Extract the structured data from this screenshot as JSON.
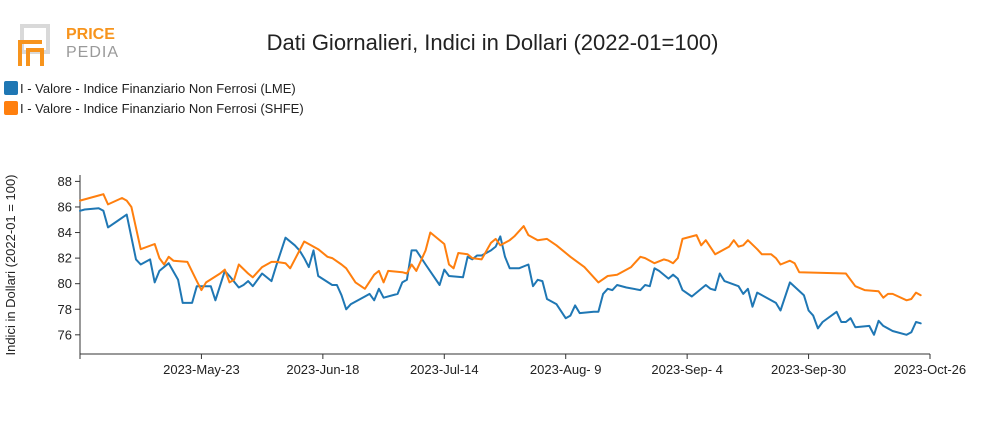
{
  "logo": {
    "line1": "PRICE",
    "line2": "PEDIA",
    "color_primary": "#f7941d",
    "color_secondary": "#9a9a9a"
  },
  "colors": {
    "lme": "#1f77b4",
    "shfe": "#ff7f0e",
    "axis": "#333333"
  },
  "chart_data": {
    "type": "line",
    "title": "Dati Giornalieri, Indici in Dollari (2022-01=100)",
    "ylabel": "Indici in Dollari (2022-01 = 100)",
    "xlabel": "",
    "xlim": [
      "2023-04-27",
      "2023-10-26"
    ],
    "ylim": [
      74.5,
      88.5
    ],
    "y_ticks": [
      76,
      78,
      80,
      82,
      84,
      86,
      88
    ],
    "x_ticks": [
      "2023-05-23",
      "2023-06-18",
      "2023-07-14",
      "2023-08-09",
      "2023-09-04",
      "2023-09-30",
      "2023-10-26"
    ],
    "x_tick_labels": [
      "2023-May-23",
      "2023-Jun-18",
      "2023-Jul-14",
      "2023-Aug- 9",
      "2023-Sep- 4",
      "2023-Sep-30",
      "2023-Oct-26"
    ],
    "legend_position": "top-left",
    "grid": false,
    "series": [
      {
        "name": "I - Valore - Indice Finanziario Non Ferrosi (LME)",
        "color": "#1f77b4",
        "points": [
          [
            "2023-04-27",
            85.7
          ],
          [
            "2023-04-28",
            85.8
          ],
          [
            "2023-05-01",
            85.9
          ],
          [
            "2023-05-02",
            85.7
          ],
          [
            "2023-05-03",
            84.4
          ],
          [
            "2023-05-05",
            84.9
          ],
          [
            "2023-05-07",
            85.4
          ],
          [
            "2023-05-09",
            81.9
          ],
          [
            "2023-05-10",
            81.5
          ],
          [
            "2023-05-12",
            81.9
          ],
          [
            "2023-05-13",
            80.1
          ],
          [
            "2023-05-14",
            81.0
          ],
          [
            "2023-05-16",
            81.6
          ],
          [
            "2023-05-18",
            80.3
          ],
          [
            "2023-05-19",
            78.5
          ],
          [
            "2023-05-21",
            78.5
          ],
          [
            "2023-05-22",
            79.8
          ],
          [
            "2023-05-25",
            79.8
          ],
          [
            "2023-05-26",
            78.7
          ],
          [
            "2023-05-28",
            81.0
          ],
          [
            "2023-05-29",
            80.6
          ],
          [
            "2023-05-31",
            79.7
          ],
          [
            "2023-06-01",
            79.9
          ],
          [
            "2023-06-02",
            80.2
          ],
          [
            "2023-06-03",
            79.8
          ],
          [
            "2023-06-05",
            80.8
          ],
          [
            "2023-06-07",
            80.2
          ],
          [
            "2023-06-08",
            81.4
          ],
          [
            "2023-06-10",
            83.6
          ],
          [
            "2023-06-12",
            83.0
          ],
          [
            "2023-06-13",
            82.6
          ],
          [
            "2023-06-14",
            82.0
          ],
          [
            "2023-06-15",
            81.3
          ],
          [
            "2023-06-16",
            82.6
          ],
          [
            "2023-06-17",
            80.6
          ],
          [
            "2023-06-20",
            79.9
          ],
          [
            "2023-06-21",
            79.9
          ],
          [
            "2023-06-22",
            79.1
          ],
          [
            "2023-06-23",
            78.0
          ],
          [
            "2023-06-24",
            78.4
          ],
          [
            "2023-06-27",
            79.0
          ],
          [
            "2023-06-28",
            79.2
          ],
          [
            "2023-06-29",
            78.7
          ],
          [
            "2023-06-30",
            79.6
          ],
          [
            "2023-07-01",
            78.9
          ],
          [
            "2023-07-04",
            79.2
          ],
          [
            "2023-07-05",
            80.1
          ],
          [
            "2023-07-06",
            80.3
          ],
          [
            "2023-07-07",
            82.6
          ],
          [
            "2023-07-08",
            82.6
          ],
          [
            "2023-07-10",
            81.5
          ],
          [
            "2023-07-13",
            79.9
          ],
          [
            "2023-07-14",
            81.1
          ],
          [
            "2023-07-15",
            80.6
          ],
          [
            "2023-07-18",
            80.5
          ],
          [
            "2023-07-19",
            82.1
          ],
          [
            "2023-07-20",
            81.9
          ],
          [
            "2023-07-21",
            82.2
          ],
          [
            "2023-07-22",
            82.2
          ],
          [
            "2023-07-24",
            82.6
          ],
          [
            "2023-07-25",
            82.9
          ],
          [
            "2023-07-26",
            83.7
          ],
          [
            "2023-07-27",
            82.1
          ],
          [
            "2023-07-28",
            81.2
          ],
          [
            "2023-07-30",
            81.2
          ],
          [
            "2023-08-01",
            81.5
          ],
          [
            "2023-08-02",
            79.8
          ],
          [
            "2023-08-03",
            80.3
          ],
          [
            "2023-08-04",
            80.2
          ],
          [
            "2023-08-05",
            78.8
          ],
          [
            "2023-08-07",
            78.4
          ],
          [
            "2023-08-09",
            77.3
          ],
          [
            "2023-08-10",
            77.5
          ],
          [
            "2023-08-11",
            78.3
          ],
          [
            "2023-08-12",
            77.7
          ],
          [
            "2023-08-15",
            77.8
          ],
          [
            "2023-08-16",
            77.8
          ],
          [
            "2023-08-17",
            79.2
          ],
          [
            "2023-08-18",
            79.6
          ],
          [
            "2023-08-19",
            79.5
          ],
          [
            "2023-08-20",
            79.9
          ],
          [
            "2023-08-22",
            79.7
          ],
          [
            "2023-08-25",
            79.5
          ],
          [
            "2023-08-26",
            79.9
          ],
          [
            "2023-08-27",
            79.8
          ],
          [
            "2023-08-28",
            81.2
          ],
          [
            "2023-08-29",
            81.0
          ],
          [
            "2023-08-31",
            80.4
          ],
          [
            "2023-09-01",
            80.7
          ],
          [
            "2023-09-02",
            80.4
          ],
          [
            "2023-09-03",
            79.5
          ],
          [
            "2023-09-05",
            79.0
          ],
          [
            "2023-09-08",
            79.9
          ],
          [
            "2023-09-09",
            79.6
          ],
          [
            "2023-09-10",
            79.5
          ],
          [
            "2023-09-11",
            80.8
          ],
          [
            "2023-09-12",
            80.2
          ],
          [
            "2023-09-15",
            79.8
          ],
          [
            "2023-09-16",
            79.2
          ],
          [
            "2023-09-17",
            79.6
          ],
          [
            "2023-09-18",
            78.2
          ],
          [
            "2023-09-19",
            79.3
          ],
          [
            "2023-09-23",
            78.5
          ],
          [
            "2023-09-24",
            77.9
          ],
          [
            "2023-09-26",
            80.1
          ],
          [
            "2023-09-29",
            79.1
          ],
          [
            "2023-09-30",
            77.9
          ],
          [
            "2023-10-01",
            77.5
          ],
          [
            "2023-10-02",
            76.5
          ],
          [
            "2023-10-03",
            77.0
          ],
          [
            "2023-10-06",
            77.8
          ],
          [
            "2023-10-07",
            77.0
          ],
          [
            "2023-10-08",
            77.0
          ],
          [
            "2023-10-09",
            77.3
          ],
          [
            "2023-10-10",
            76.6
          ],
          [
            "2023-10-13",
            76.7
          ],
          [
            "2023-10-14",
            76.0
          ],
          [
            "2023-10-15",
            77.1
          ],
          [
            "2023-10-16",
            76.7
          ],
          [
            "2023-10-18",
            76.3
          ],
          [
            "2023-10-21",
            76.0
          ],
          [
            "2023-10-22",
            76.2
          ],
          [
            "2023-10-23",
            77.0
          ],
          [
            "2023-10-24",
            76.9
          ]
        ]
      },
      {
        "name": "I - Valore - Indice Finanziario Non Ferrosi (SHFE)",
        "color": "#ff7f0e",
        "points": [
          [
            "2023-04-27",
            86.5
          ],
          [
            "2023-05-01",
            86.9
          ],
          [
            "2023-05-02",
            87.0
          ],
          [
            "2023-05-03",
            86.2
          ],
          [
            "2023-05-06",
            86.7
          ],
          [
            "2023-05-07",
            86.5
          ],
          [
            "2023-05-08",
            86.0
          ],
          [
            "2023-05-10",
            82.7
          ],
          [
            "2023-05-13",
            83.1
          ],
          [
            "2023-05-14",
            82.0
          ],
          [
            "2023-05-15",
            81.5
          ],
          [
            "2023-05-16",
            82.1
          ],
          [
            "2023-05-17",
            81.8
          ],
          [
            "2023-05-20",
            81.7
          ],
          [
            "2023-05-22",
            80.2
          ],
          [
            "2023-05-23",
            79.5
          ],
          [
            "2023-05-24",
            80.1
          ],
          [
            "2023-05-27",
            80.8
          ],
          [
            "2023-05-28",
            81.1
          ],
          [
            "2023-05-29",
            80.1
          ],
          [
            "2023-05-30",
            80.3
          ],
          [
            "2023-05-31",
            81.5
          ],
          [
            "2023-06-02",
            80.8
          ],
          [
            "2023-06-03",
            80.5
          ],
          [
            "2023-06-05",
            81.3
          ],
          [
            "2023-06-07",
            81.7
          ],
          [
            "2023-06-08",
            81.7
          ],
          [
            "2023-06-10",
            81.6
          ],
          [
            "2023-06-11",
            81.2
          ],
          [
            "2023-06-14",
            83.3
          ],
          [
            "2023-06-17",
            82.7
          ],
          [
            "2023-06-19",
            82.1
          ],
          [
            "2023-06-20",
            82.0
          ],
          [
            "2023-06-22",
            81.5
          ],
          [
            "2023-06-23",
            81.2
          ],
          [
            "2023-06-25",
            80.1
          ],
          [
            "2023-06-27",
            79.6
          ],
          [
            "2023-06-29",
            80.7
          ],
          [
            "2023-06-30",
            81.0
          ],
          [
            "2023-07-01",
            80.1
          ],
          [
            "2023-07-02",
            81.0
          ],
          [
            "2023-07-05",
            80.9
          ],
          [
            "2023-07-06",
            80.8
          ],
          [
            "2023-07-07",
            81.5
          ],
          [
            "2023-07-08",
            81.0
          ],
          [
            "2023-07-10",
            82.6
          ],
          [
            "2023-07-11",
            84.0
          ],
          [
            "2023-07-14",
            83.1
          ],
          [
            "2023-07-15",
            81.5
          ],
          [
            "2023-07-16",
            81.2
          ],
          [
            "2023-07-17",
            82.4
          ],
          [
            "2023-07-19",
            82.3
          ],
          [
            "2023-07-20",
            82.0
          ],
          [
            "2023-07-22",
            81.9
          ],
          [
            "2023-07-24",
            83.2
          ],
          [
            "2023-07-25",
            83.5
          ],
          [
            "2023-07-26",
            83.0
          ],
          [
            "2023-07-28",
            83.4
          ],
          [
            "2023-07-29",
            83.7
          ],
          [
            "2023-07-31",
            84.5
          ],
          [
            "2023-08-01",
            83.8
          ],
          [
            "2023-08-03",
            83.4
          ],
          [
            "2023-08-05",
            83.5
          ],
          [
            "2023-08-07",
            83.0
          ],
          [
            "2023-08-10",
            82.1
          ],
          [
            "2023-08-13",
            81.3
          ],
          [
            "2023-08-16",
            80.1
          ],
          [
            "2023-08-18",
            80.6
          ],
          [
            "2023-08-20",
            80.7
          ],
          [
            "2023-08-23",
            81.3
          ],
          [
            "2023-08-25",
            82.1
          ],
          [
            "2023-08-26",
            82.0
          ],
          [
            "2023-08-28",
            81.6
          ],
          [
            "2023-08-30",
            81.9
          ],
          [
            "2023-08-31",
            81.8
          ],
          [
            "2023-09-01",
            81.6
          ],
          [
            "2023-09-02",
            82.0
          ],
          [
            "2023-09-03",
            83.5
          ],
          [
            "2023-09-06",
            83.8
          ],
          [
            "2023-09-07",
            83.0
          ],
          [
            "2023-09-08",
            83.4
          ],
          [
            "2023-09-10",
            82.3
          ],
          [
            "2023-09-13",
            82.9
          ],
          [
            "2023-09-14",
            83.4
          ],
          [
            "2023-09-15",
            82.9
          ],
          [
            "2023-09-16",
            83.0
          ],
          [
            "2023-09-17",
            83.4
          ],
          [
            "2023-09-19",
            82.7
          ],
          [
            "2023-09-20",
            82.3
          ],
          [
            "2023-09-22",
            82.3
          ],
          [
            "2023-09-23",
            82.0
          ],
          [
            "2023-09-24",
            81.5
          ],
          [
            "2023-09-26",
            81.8
          ],
          [
            "2023-09-27",
            81.6
          ],
          [
            "2023-09-28",
            80.9
          ],
          [
            "2023-10-08",
            80.8
          ],
          [
            "2023-10-10",
            79.8
          ],
          [
            "2023-10-12",
            79.5
          ],
          [
            "2023-10-15",
            79.4
          ],
          [
            "2023-10-16",
            78.9
          ],
          [
            "2023-10-17",
            79.2
          ],
          [
            "2023-10-18",
            79.2
          ],
          [
            "2023-10-21",
            78.7
          ],
          [
            "2023-10-22",
            78.8
          ],
          [
            "2023-10-23",
            79.3
          ],
          [
            "2023-10-24",
            79.1
          ]
        ]
      }
    ]
  }
}
